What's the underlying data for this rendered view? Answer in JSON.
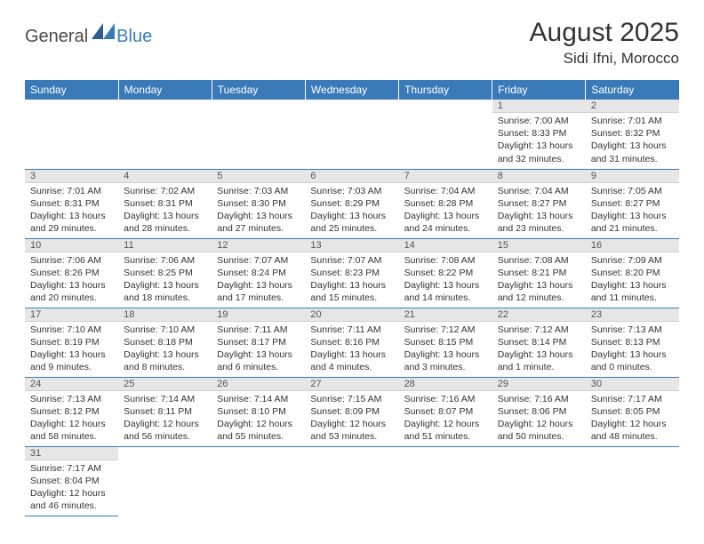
{
  "logo": {
    "general": "General",
    "blue": "Blue"
  },
  "title": "August 2025",
  "location": "Sidi Ifni, Morocco",
  "colors": {
    "header_bg": "#3a7ab8",
    "header_text": "#ffffff",
    "daynum_bg": "#e6e6e6",
    "border": "#3a7ab8"
  },
  "weekdays": [
    "Sunday",
    "Monday",
    "Tuesday",
    "Wednesday",
    "Thursday",
    "Friday",
    "Saturday"
  ],
  "weeks": [
    [
      {
        "empty": true
      },
      {
        "empty": true
      },
      {
        "empty": true
      },
      {
        "empty": true
      },
      {
        "empty": true
      },
      {
        "n": "1",
        "sr": "Sunrise: 7:00 AM",
        "ss": "Sunset: 8:33 PM",
        "dl": "Daylight: 13 hours and 32 minutes."
      },
      {
        "n": "2",
        "sr": "Sunrise: 7:01 AM",
        "ss": "Sunset: 8:32 PM",
        "dl": "Daylight: 13 hours and 31 minutes."
      }
    ],
    [
      {
        "n": "3",
        "sr": "Sunrise: 7:01 AM",
        "ss": "Sunset: 8:31 PM",
        "dl": "Daylight: 13 hours and 29 minutes."
      },
      {
        "n": "4",
        "sr": "Sunrise: 7:02 AM",
        "ss": "Sunset: 8:31 PM",
        "dl": "Daylight: 13 hours and 28 minutes."
      },
      {
        "n": "5",
        "sr": "Sunrise: 7:03 AM",
        "ss": "Sunset: 8:30 PM",
        "dl": "Daylight: 13 hours and 27 minutes."
      },
      {
        "n": "6",
        "sr": "Sunrise: 7:03 AM",
        "ss": "Sunset: 8:29 PM",
        "dl": "Daylight: 13 hours and 25 minutes."
      },
      {
        "n": "7",
        "sr": "Sunrise: 7:04 AM",
        "ss": "Sunset: 8:28 PM",
        "dl": "Daylight: 13 hours and 24 minutes."
      },
      {
        "n": "8",
        "sr": "Sunrise: 7:04 AM",
        "ss": "Sunset: 8:27 PM",
        "dl": "Daylight: 13 hours and 23 minutes."
      },
      {
        "n": "9",
        "sr": "Sunrise: 7:05 AM",
        "ss": "Sunset: 8:27 PM",
        "dl": "Daylight: 13 hours and 21 minutes."
      }
    ],
    [
      {
        "n": "10",
        "sr": "Sunrise: 7:06 AM",
        "ss": "Sunset: 8:26 PM",
        "dl": "Daylight: 13 hours and 20 minutes."
      },
      {
        "n": "11",
        "sr": "Sunrise: 7:06 AM",
        "ss": "Sunset: 8:25 PM",
        "dl": "Daylight: 13 hours and 18 minutes."
      },
      {
        "n": "12",
        "sr": "Sunrise: 7:07 AM",
        "ss": "Sunset: 8:24 PM",
        "dl": "Daylight: 13 hours and 17 minutes."
      },
      {
        "n": "13",
        "sr": "Sunrise: 7:07 AM",
        "ss": "Sunset: 8:23 PM",
        "dl": "Daylight: 13 hours and 15 minutes."
      },
      {
        "n": "14",
        "sr": "Sunrise: 7:08 AM",
        "ss": "Sunset: 8:22 PM",
        "dl": "Daylight: 13 hours and 14 minutes."
      },
      {
        "n": "15",
        "sr": "Sunrise: 7:08 AM",
        "ss": "Sunset: 8:21 PM",
        "dl": "Daylight: 13 hours and 12 minutes."
      },
      {
        "n": "16",
        "sr": "Sunrise: 7:09 AM",
        "ss": "Sunset: 8:20 PM",
        "dl": "Daylight: 13 hours and 11 minutes."
      }
    ],
    [
      {
        "n": "17",
        "sr": "Sunrise: 7:10 AM",
        "ss": "Sunset: 8:19 PM",
        "dl": "Daylight: 13 hours and 9 minutes."
      },
      {
        "n": "18",
        "sr": "Sunrise: 7:10 AM",
        "ss": "Sunset: 8:18 PM",
        "dl": "Daylight: 13 hours and 8 minutes."
      },
      {
        "n": "19",
        "sr": "Sunrise: 7:11 AM",
        "ss": "Sunset: 8:17 PM",
        "dl": "Daylight: 13 hours and 6 minutes."
      },
      {
        "n": "20",
        "sr": "Sunrise: 7:11 AM",
        "ss": "Sunset: 8:16 PM",
        "dl": "Daylight: 13 hours and 4 minutes."
      },
      {
        "n": "21",
        "sr": "Sunrise: 7:12 AM",
        "ss": "Sunset: 8:15 PM",
        "dl": "Daylight: 13 hours and 3 minutes."
      },
      {
        "n": "22",
        "sr": "Sunrise: 7:12 AM",
        "ss": "Sunset: 8:14 PM",
        "dl": "Daylight: 13 hours and 1 minute."
      },
      {
        "n": "23",
        "sr": "Sunrise: 7:13 AM",
        "ss": "Sunset: 8:13 PM",
        "dl": "Daylight: 13 hours and 0 minutes."
      }
    ],
    [
      {
        "n": "24",
        "sr": "Sunrise: 7:13 AM",
        "ss": "Sunset: 8:12 PM",
        "dl": "Daylight: 12 hours and 58 minutes."
      },
      {
        "n": "25",
        "sr": "Sunrise: 7:14 AM",
        "ss": "Sunset: 8:11 PM",
        "dl": "Daylight: 12 hours and 56 minutes."
      },
      {
        "n": "26",
        "sr": "Sunrise: 7:14 AM",
        "ss": "Sunset: 8:10 PM",
        "dl": "Daylight: 12 hours and 55 minutes."
      },
      {
        "n": "27",
        "sr": "Sunrise: 7:15 AM",
        "ss": "Sunset: 8:09 PM",
        "dl": "Daylight: 12 hours and 53 minutes."
      },
      {
        "n": "28",
        "sr": "Sunrise: 7:16 AM",
        "ss": "Sunset: 8:07 PM",
        "dl": "Daylight: 12 hours and 51 minutes."
      },
      {
        "n": "29",
        "sr": "Sunrise: 7:16 AM",
        "ss": "Sunset: 8:06 PM",
        "dl": "Daylight: 12 hours and 50 minutes."
      },
      {
        "n": "30",
        "sr": "Sunrise: 7:17 AM",
        "ss": "Sunset: 8:05 PM",
        "dl": "Daylight: 12 hours and 48 minutes."
      }
    ],
    [
      {
        "n": "31",
        "sr": "Sunrise: 7:17 AM",
        "ss": "Sunset: 8:04 PM",
        "dl": "Daylight: 12 hours and 46 minutes."
      },
      {
        "trailing": true
      },
      {
        "trailing": true
      },
      {
        "trailing": true
      },
      {
        "trailing": true
      },
      {
        "trailing": true
      },
      {
        "trailing": true
      }
    ]
  ]
}
